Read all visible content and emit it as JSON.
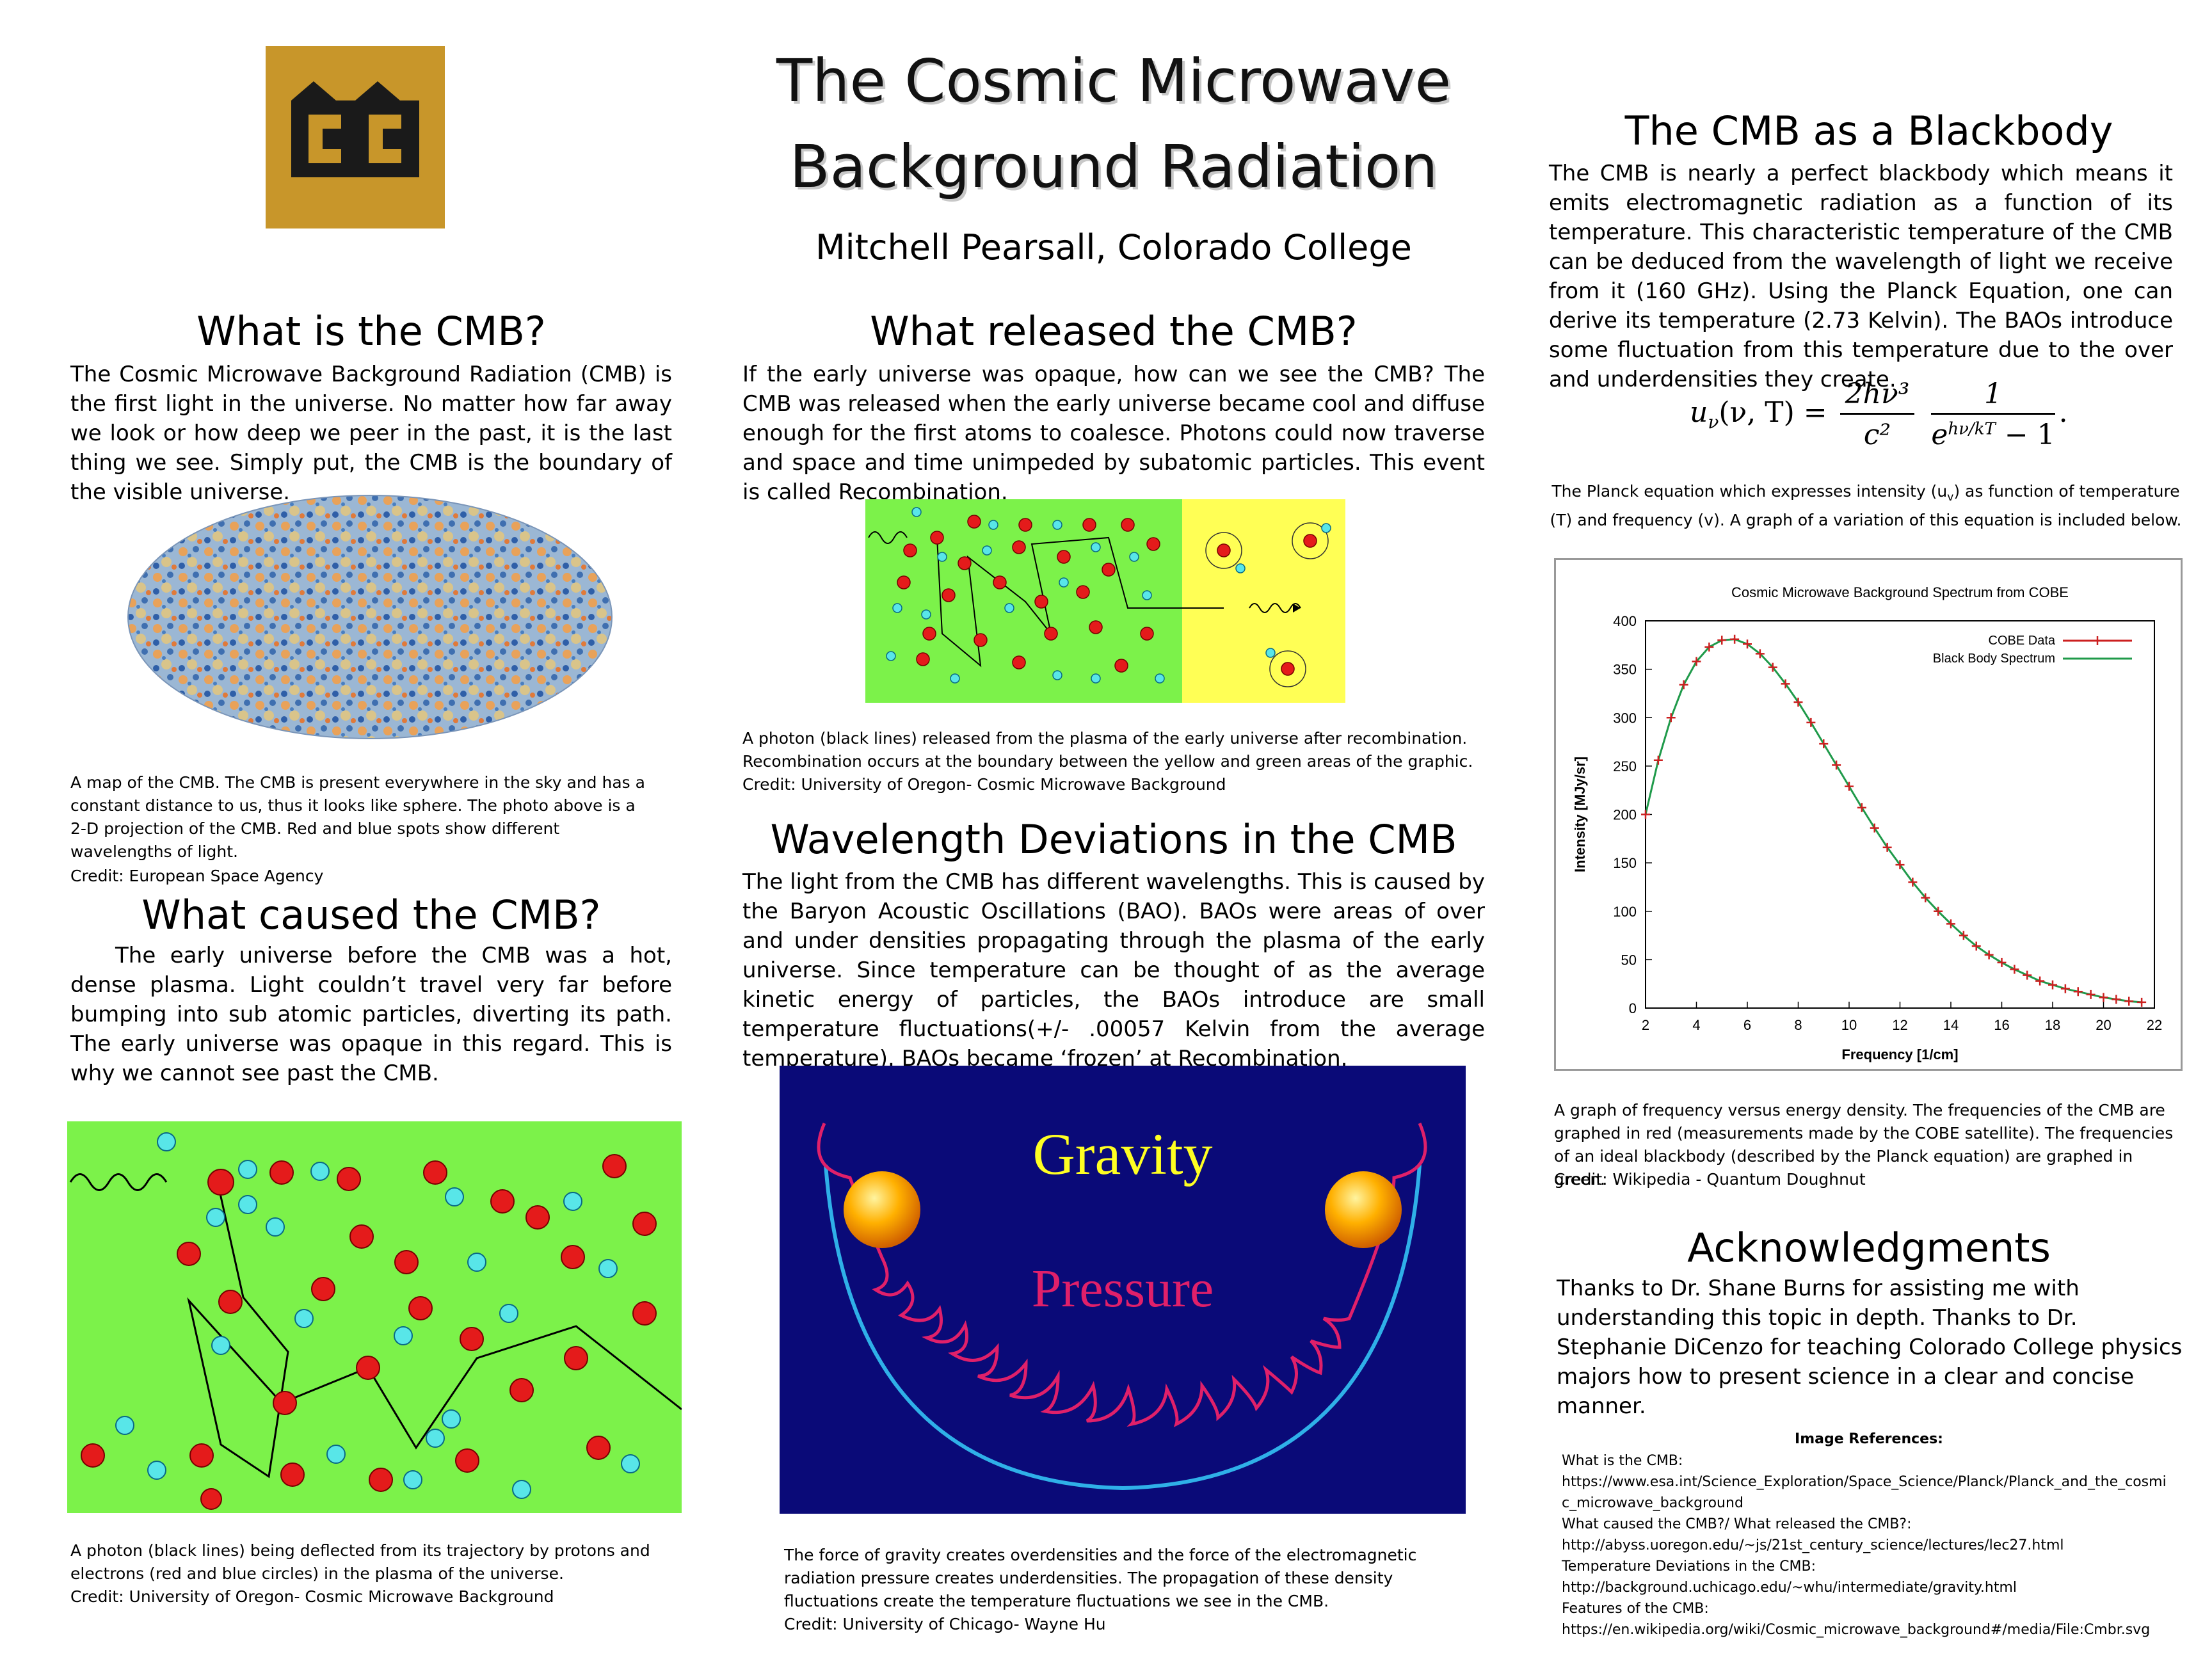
{
  "poster": {
    "title": "The Cosmic Microwave Background Radiation",
    "author": "Mitchell Pearsall, Colorado College"
  },
  "logo": {
    "text": "CC"
  },
  "what_is": {
    "heading": "What is the CMB?",
    "body": "The Cosmic Microwave Background Radiation (CMB) is the first light in the universe. No matter how far away we look or how deep we peer in the past, it is the last thing we see. Simply put, the CMB is the boundary of the visible universe.",
    "caption": "A map of the CMB.  The CMB is present everywhere in the sky and has a constant distance to us, thus it looks like sphere.  The photo above is a 2-D projection of the CMB. Red and blue spots show different wavelengths of light.",
    "credit": "Credit: European Space Agency"
  },
  "what_caused": {
    "heading": "What caused the CMB?",
    "body": "The early universe before the CMB was a hot, dense plasma.  Light couldn’t travel very far before bumping into sub atomic particles, diverting its path.  The early universe was opaque in this regard. This is why we cannot see past the CMB.",
    "caption": "A photon (black lines) being deflected from its trajectory by protons and electrons (red and blue circles) in the plasma of the universe.",
    "credit": "Credit: University of Oregon- Cosmic Microwave Background"
  },
  "what_released": {
    "heading": "What released the CMB?",
    "body": "If the early universe was opaque, how can we see the CMB? The CMB was released when the early universe became cool and diffuse enough for the first atoms to coalesce. Photons could now traverse and space and time unimpeded by subatomic particles. This event is called Recombination.",
    "caption": "A photon (black lines) released from the plasma of the early universe after recombination. Recombination occurs at the boundary between the yellow and green areas of the graphic.",
    "credit": "Credit: University of Oregon- Cosmic Microwave Background"
  },
  "wavelength": {
    "heading": "Wavelength Deviations in the CMB",
    "body": "The light from the CMB has different wavelengths. This is caused by the Baryon Acoustic Oscillations (BAO).  BAOs were areas of over and under densities propagating through the plasma of the early universe.  Since temperature can be thought of as the average kinetic energy of particles, the BAOs introduce are small temperature fluctuations(+/-  .00057 Kelvin from the average temperature).  BAOs became ‘frozen’ at Recombination.",
    "gravity_label": "Gravity",
    "pressure_label": "Pressure",
    "caption": "The force of gravity creates overdensities and the force of the electromagnetic radiation pressure creates underdensities.  The propagation of these density fluctuations create the temperature fluctuations we see in the CMB.",
    "credit": "Credit: University of Chicago- Wayne Hu"
  },
  "blackbody": {
    "heading": "The CMB as a Blackbody",
    "body": " The CMB is nearly a perfect blackbody which means it emits electromagnetic radiation as a function of its temperature.  This characteristic temperature of the CMB can be deduced from the wavelength of light we receive from it (160 GHz).  Using the Planck Equation, one can derive its temperature (2.73 Kelvin).  The BAOs introduce some fluctuation from this temperature due to the over and underdensities they create.",
    "eq_lhs": "u",
    "eq_lhs_sub": "ν",
    "eq_args": "(ν, T) =",
    "eq_num1": "2hν³",
    "eq_den1": "c²",
    "eq_num2": "1",
    "eq_den2_exp": "e",
    "eq_den2_sup": "hν/kT",
    "eq_den2_tail": " − 1",
    "eq_end": ".",
    "eq_caption": "The Planck equation which expresses intensity (u",
    "eq_caption_sub": "v",
    "eq_caption_tail": ") as function of temperature (T) and frequency (v). A graph of a variation of this equation is included below.",
    "graph_caption": " A graph of frequency versus energy density.  The frequencies of the CMB are graphed in red (measurements made by the COBE satellite).  The frequencies of an ideal blackbody (described by the Planck equation) are graphed in green.",
    "graph_credit": "Credit: Wikipedia - Quantum Doughnut"
  },
  "chart_data": {
    "type": "line",
    "title": "Cosmic Microwave Background Spectrum from COBE",
    "xlabel": "Frequency [1/cm]",
    "ylabel": "Intensity [MJy/sr]",
    "xlim": [
      2,
      22
    ],
    "ylim": [
      0,
      400
    ],
    "xticks": [
      2,
      4,
      6,
      8,
      10,
      12,
      14,
      16,
      18,
      20,
      22
    ],
    "yticks": [
      0,
      50,
      100,
      150,
      200,
      250,
      300,
      350,
      400
    ],
    "legend": "top-right",
    "series": [
      {
        "name": "COBE Data",
        "color": "#cc2020",
        "style": "points"
      },
      {
        "name": "Black Body Spectrum",
        "color": "#1f9a4a",
        "style": "line"
      }
    ],
    "x": [
      2.0,
      2.5,
      3.0,
      3.5,
      4.0,
      4.5,
      5.0,
      5.5,
      6.0,
      6.5,
      7.0,
      7.5,
      8.0,
      8.5,
      9.0,
      9.5,
      10.0,
      10.5,
      11.0,
      11.5,
      12.0,
      12.5,
      13.0,
      13.5,
      14.0,
      14.5,
      15.0,
      15.5,
      16.0,
      16.5,
      17.0,
      17.5,
      18.0,
      18.5,
      19.0,
      19.5,
      20.0,
      20.5,
      21.0,
      21.5
    ],
    "y": [
      200,
      256,
      300,
      334,
      358,
      373,
      380,
      381,
      376,
      366,
      352,
      335,
      316,
      295,
      273,
      251,
      229,
      207,
      186,
      166,
      148,
      130,
      114,
      100,
      87,
      75,
      64,
      55,
      47,
      40,
      34,
      28,
      24,
      20,
      17,
      14,
      11,
      9,
      7,
      6
    ]
  },
  "acknowledgments": {
    "heading": "Acknowledgments",
    "body": "Thanks to Dr. Shane Burns for assisting me with understanding this topic in depth.  Thanks to Dr. Stephanie DiCenzo for teaching Colorado College physics majors how to present science in a clear and concise manner."
  },
  "references": {
    "heading": "Image References:",
    "lines": [
      "What is the CMB:",
      "https://www.esa.int/Science_Exploration/Space_Science/Planck/Planck_and_the_cosmi",
      "c_microwave_background",
      "What caused the CMB?/ What released the CMB?:",
      "http://abyss.uoregon.edu/~js/21st_century_science/lectures/lec27.html",
      "Temperature Deviations in the CMB:",
      "http://background.uchicago.edu/~whu/intermediate/gravity.html",
      "Features of the CMB:",
      "https://en.wikipedia.org/wiki/Cosmic_microwave_background#/media/File:Cmbr.svg"
    ]
  }
}
